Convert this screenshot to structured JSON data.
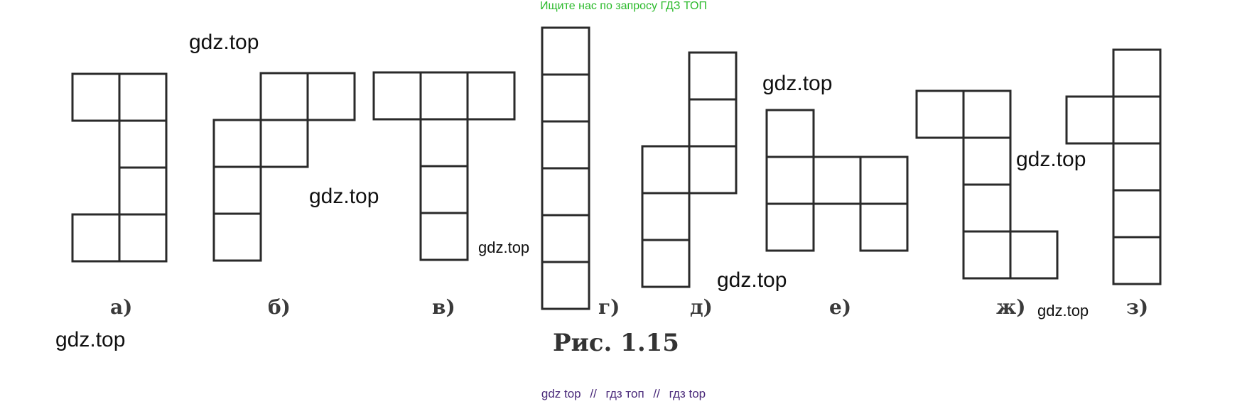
{
  "banner": "Ищите нас по запросу ГДЗ ТОП",
  "figure": {
    "caption": "Рис. 1.15",
    "shapes": [
      {
        "label": "а)"
      },
      {
        "label": "б)"
      },
      {
        "label": "в)"
      },
      {
        "label": "г)"
      },
      {
        "label": "д)"
      },
      {
        "label": "е)"
      },
      {
        "label": "ж)"
      },
      {
        "label": "з)"
      }
    ]
  },
  "watermarks": {
    "w1": "gdz.top",
    "w2": "gdz.top",
    "w3": "gdz.top",
    "w4": "gdz.top",
    "w5": "gdz.top",
    "w6": "gdz.top",
    "w7": "gdz.top",
    "w8": "gdz.top"
  },
  "footer": {
    "link1": "gdz top",
    "sep1": "//",
    "link2": "гдз топ",
    "sep2": "//",
    "link3": "гдз top"
  },
  "colors": {
    "banner": "#2cba2c",
    "grid_lines": "#2a2a2a",
    "footer_links": "#4a2a7a"
  }
}
